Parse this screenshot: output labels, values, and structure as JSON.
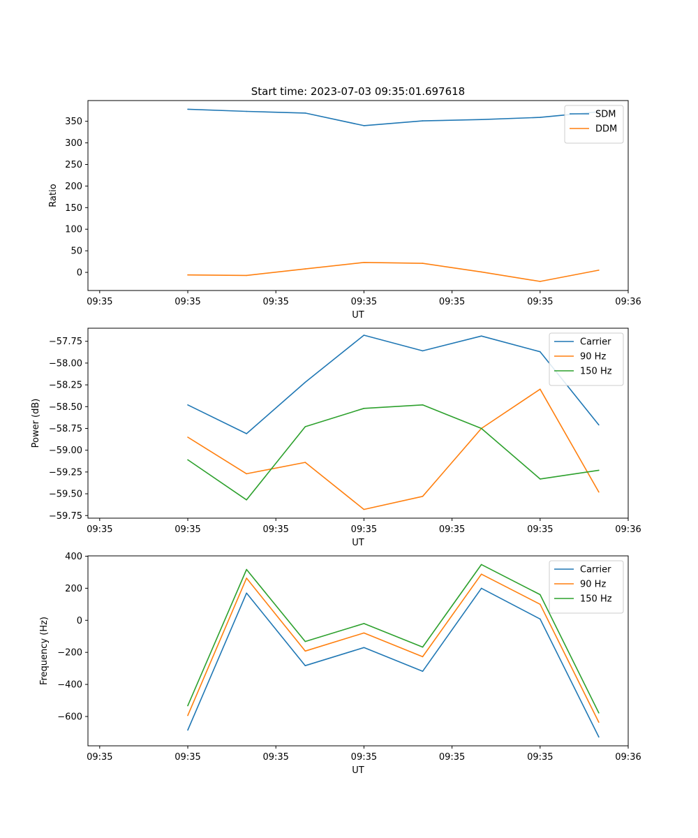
{
  "chart_data": [
    {
      "type": "line",
      "title": "Start time: 2023-07-03 09:35:01.697618",
      "xlabel": "UT",
      "ylabel": "Ratio",
      "x": [
        0.75,
        1.25,
        1.75,
        2.25,
        2.75,
        3.25,
        3.75,
        4.25
      ],
      "xlim": [
        -0.1,
        4.5
      ],
      "x_ticks": [
        0,
        0.75,
        1.5,
        2.25,
        3.0,
        3.75,
        4.5
      ],
      "x_tick_labels": [
        "09:35",
        "09:35",
        "09:35",
        "09:35",
        "09:35",
        "09:35",
        "09:36"
      ],
      "ylim": [
        -42,
        398
      ],
      "y_ticks": [
        0,
        50,
        100,
        150,
        200,
        250,
        300,
        350
      ],
      "y_tick_labels": [
        "0",
        "50",
        "100",
        "150",
        "200",
        "250",
        "300",
        "350"
      ],
      "legend_position": "upper-right",
      "grid": false,
      "series": [
        {
          "name": "SDM",
          "color": "#1f77b4",
          "values": [
            378,
            373,
            369,
            340,
            351,
            354,
            359,
            372
          ]
        },
        {
          "name": "DDM",
          "color": "#ff7f0e",
          "values": [
            -6,
            -7,
            8,
            23,
            21,
            1,
            -21,
            5
          ]
        }
      ]
    },
    {
      "type": "line",
      "title": "",
      "xlabel": "UT",
      "ylabel": "Power (dB)",
      "x": [
        0.75,
        1.25,
        1.75,
        2.25,
        2.75,
        3.25,
        3.75,
        4.25
      ],
      "xlim": [
        -0.1,
        4.5
      ],
      "x_ticks": [
        0,
        0.75,
        1.5,
        2.25,
        3.0,
        3.75,
        4.5
      ],
      "x_tick_labels": [
        "09:35",
        "09:35",
        "09:35",
        "09:35",
        "09:35",
        "09:35",
        "09:36"
      ],
      "ylim": [
        -59.78,
        -57.6
      ],
      "y_ticks": [
        -59.75,
        -59.5,
        -59.25,
        -59.0,
        -58.75,
        -58.5,
        -58.25,
        -58.0,
        -57.75
      ],
      "y_tick_labels": [
        "−59.75",
        "−59.50",
        "−59.25",
        "−59.00",
        "−58.75",
        "−58.50",
        "−58.25",
        "−58.00",
        "−57.75"
      ],
      "legend_position": "upper-right",
      "grid": false,
      "series": [
        {
          "name": "Carrier",
          "color": "#1f77b4",
          "values": [
            -58.48,
            -58.81,
            -58.22,
            -57.68,
            -57.86,
            -57.69,
            -57.87,
            -58.71
          ]
        },
        {
          "name": "90 Hz",
          "color": "#ff7f0e",
          "values": [
            -58.85,
            -59.27,
            -59.14,
            -59.68,
            -59.53,
            -58.75,
            -58.3,
            -59.48
          ]
        },
        {
          "name": "150 Hz",
          "color": "#2ca02c",
          "values": [
            -59.11,
            -59.57,
            -58.73,
            -58.52,
            -58.48,
            -58.75,
            -59.33,
            -59.23
          ]
        }
      ]
    },
    {
      "type": "line",
      "title": "",
      "xlabel": "UT",
      "ylabel": "Frequency (Hz)",
      "x": [
        0.75,
        1.25,
        1.75,
        2.25,
        2.75,
        3.25,
        3.75,
        4.25
      ],
      "xlim": [
        -0.1,
        4.5
      ],
      "x_ticks": [
        0,
        0.75,
        1.5,
        2.25,
        3.0,
        3.75,
        4.5
      ],
      "x_tick_labels": [
        "09:35",
        "09:35",
        "09:35",
        "09:35",
        "09:35",
        "09:35",
        "09:36"
      ],
      "ylim": [
        -783,
        402
      ],
      "y_ticks": [
        -600,
        -400,
        -200,
        0,
        200,
        400
      ],
      "y_tick_labels": [
        "−600",
        "−400",
        "−200",
        "0",
        "200",
        "400"
      ],
      "legend_position": "upper-right",
      "grid": false,
      "series": [
        {
          "name": "Carrier",
          "color": "#1f77b4",
          "values": [
            -685,
            170,
            -283,
            -170,
            -318,
            200,
            8,
            -728
          ]
        },
        {
          "name": "90 Hz",
          "color": "#ff7f0e",
          "values": [
            -594,
            263,
            -192,
            -79,
            -227,
            288,
            100,
            -636
          ]
        },
        {
          "name": "150 Hz",
          "color": "#2ca02c",
          "values": [
            -533,
            317,
            -132,
            -20,
            -167,
            348,
            160,
            -578
          ]
        }
      ]
    }
  ]
}
